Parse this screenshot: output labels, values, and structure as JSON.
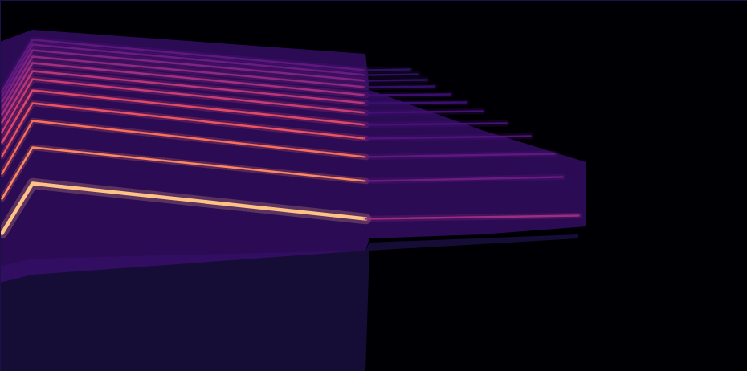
{
  "chart_data": {
    "type": "line",
    "xlim": [
      0,
      930
    ],
    "ylim": [
      0,
      462
    ],
    "tick_labels": false,
    "series": [
      {
        "type": "area",
        "color": "#1d1147",
        "x": [
          0,
          40,
          455,
          460,
          720
        ],
        "values": [
          130,
          140,
          150,
          160,
          170
        ],
        "low": [
          0,
          0,
          0,
          150,
          165
        ]
      },
      {
        "type": "area",
        "color": "#3b0f70",
        "x": [
          0,
          40,
          455,
          460,
          600,
          730
        ],
        "values": [
          410,
          425,
          395,
          350,
          300,
          260
        ],
        "low": [
          110,
          120,
          150,
          165,
          170,
          180
        ]
      },
      {
        "type": "line",
        "color": "#fec287",
        "x": [
          2,
          40,
          455
        ],
        "values": [
          172,
          234,
          190
        ]
      },
      {
        "type": "line",
        "color": "#fb8861",
        "x": [
          2,
          40,
          455
        ],
        "values": [
          215,
          279,
          237
        ]
      },
      {
        "type": "line",
        "color": "#f7705c",
        "x": [
          2,
          40,
          455
        ],
        "values": [
          246,
          312,
          267
        ]
      },
      {
        "type": "line",
        "color": "#e85462",
        "x": [
          2,
          40,
          455
        ],
        "values": [
          268,
          334,
          290
        ]
      },
      {
        "type": "line",
        "color": "#de4968",
        "x": [
          2,
          40,
          455
        ],
        "values": [
          285,
          350,
          307
        ]
      },
      {
        "type": "line",
        "color": "#c83e73",
        "x": [
          2,
          40,
          455
        ],
        "values": [
          298,
          364,
          322
        ]
      },
      {
        "type": "line",
        "color": "#b73779",
        "x": [
          2,
          40,
          455
        ],
        "values": [
          310,
          374,
          334
        ]
      },
      {
        "type": "line",
        "color": "#a3307e",
        "x": [
          2,
          40,
          455
        ],
        "values": [
          320,
          384,
          344
        ]
      },
      {
        "type": "line",
        "color": "#8c2981",
        "x": [
          2,
          40,
          455
        ],
        "values": [
          328,
          392,
          354
        ]
      },
      {
        "type": "line",
        "color": "#7e2482",
        "x": [
          2,
          40,
          455
        ],
        "values": [
          336,
          400,
          362
        ]
      },
      {
        "type": "line",
        "color": "#6a1c81",
        "x": [
          2,
          40,
          455
        ],
        "values": [
          343,
          407,
          369
        ]
      },
      {
        "type": "line",
        "color": "#5f187f",
        "x": [
          2,
          40,
          455
        ],
        "values": [
          349,
          413,
          375
        ]
      },
      {
        "type": "line",
        "color": "#9c2e7f",
        "x": [
          455,
          720
        ],
        "values": [
          190,
          194
        ]
      },
      {
        "type": "line",
        "color": "#6a1c81",
        "x": [
          455,
          700
        ],
        "values": [
          237,
          242
        ]
      },
      {
        "type": "line",
        "color": "#5f187f",
        "x": [
          455,
          690
        ],
        "values": [
          267,
          271
        ]
      },
      {
        "type": "line",
        "color": "#51127c",
        "x": [
          455,
          660
        ],
        "values": [
          290,
          293
        ]
      },
      {
        "type": "line",
        "color": "#4a1079",
        "x": [
          455,
          630
        ],
        "values": [
          307,
          309
        ]
      },
      {
        "type": "line",
        "color": "#440f76",
        "x": [
          455,
          600
        ],
        "values": [
          322,
          324
        ]
      },
      {
        "type": "line",
        "color": "#3b0f70",
        "x": [
          455,
          580
        ],
        "values": [
          334,
          335
        ]
      },
      {
        "type": "line",
        "color": "#3b0f70",
        "x": [
          455,
          560
        ],
        "values": [
          344,
          345
        ]
      },
      {
        "type": "line",
        "color": "#331068",
        "x": [
          455,
          540
        ],
        "values": [
          354,
          355
        ]
      },
      {
        "type": "line",
        "color": "#331068",
        "x": [
          455,
          530
        ],
        "values": [
          362,
          363
        ]
      },
      {
        "type": "line",
        "color": "#2c115f",
        "x": [
          455,
          520
        ],
        "values": [
          369,
          370
        ]
      },
      {
        "type": "line",
        "color": "#2c115f",
        "x": [
          455,
          510
        ],
        "values": [
          375,
          376
        ]
      }
    ]
  }
}
